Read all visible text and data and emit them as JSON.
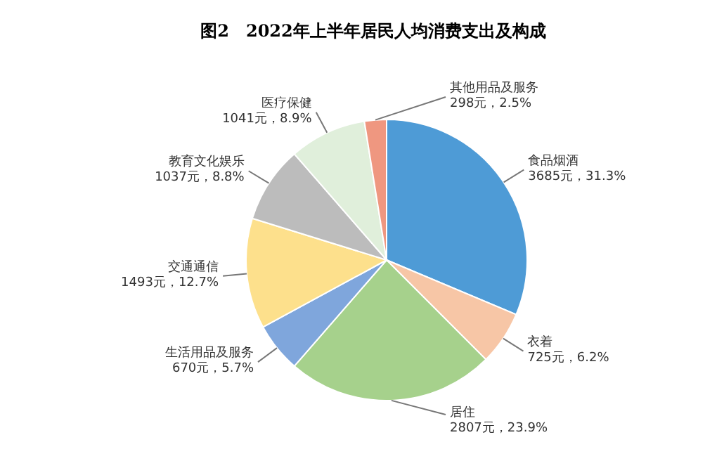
{
  "chart_data": {
    "type": "pie",
    "title": "图2　2022年上半年居民人均消费支出及构成",
    "categories": [
      "食品烟酒",
      "衣着",
      "居住",
      "生活用品及服务",
      "交通通信",
      "教育文化娱乐",
      "医疗保健",
      "其他用品及服务"
    ],
    "values": [
      3685,
      725,
      2807,
      670,
      1493,
      1037,
      1041,
      298
    ],
    "value_labels": [
      "3685元，31.3%",
      "725元，6.2%",
      "2807元，23.9%",
      "670元，5.7%",
      "1493元，12.7%",
      "1037元，8.8%",
      "1041元，8.9%",
      "298元，2.5%"
    ],
    "colors": [
      "#4e9bd6",
      "#f7c6a6",
      "#a6d18c",
      "#7fa6dc",
      "#fde08c",
      "#bcbcbc",
      "#e0efdb",
      "#ef9780"
    ],
    "legend": false
  }
}
